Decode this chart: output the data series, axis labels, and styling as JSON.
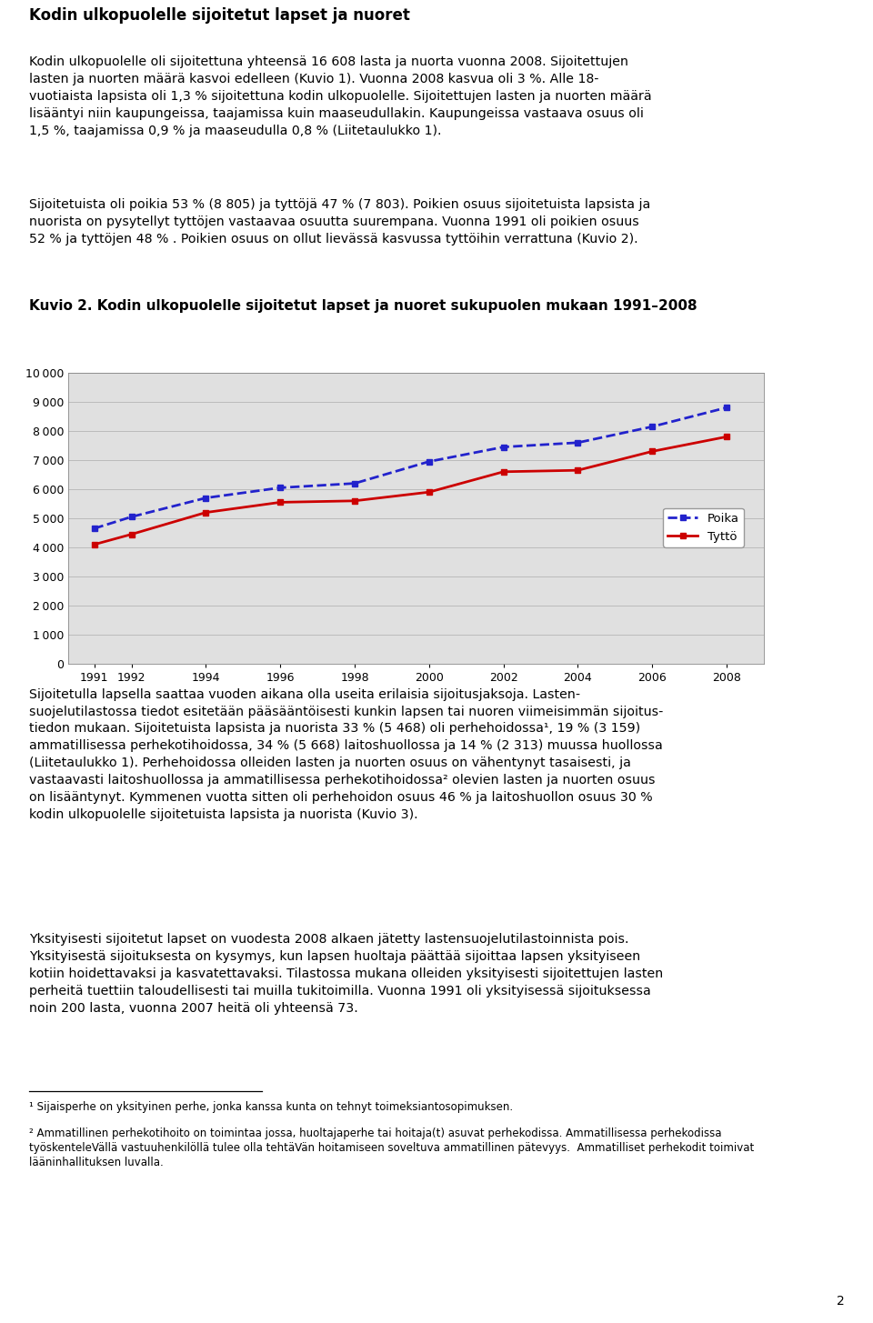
{
  "main_title": "Kodin ulkopuolelle sijoitetut lapset ja nuoret",
  "kuvio_title": "Kuvio 2. Kodin ulkopuolelle sijoitetut lapset ja nuoret sukupuolen mukaan 1991–2008",
  "page_number": "2",
  "years": [
    1991,
    1992,
    1994,
    1996,
    1998,
    2000,
    2002,
    2004,
    2006,
    2008
  ],
  "poika": [
    4650,
    5050,
    5700,
    6050,
    6200,
    6950,
    7450,
    7600,
    8150,
    8805
  ],
  "tytto": [
    4100,
    4450,
    5200,
    5550,
    5600,
    5900,
    6600,
    6650,
    7300,
    7803
  ],
  "ylim": [
    0,
    10000
  ],
  "yticks": [
    0,
    1000,
    2000,
    3000,
    4000,
    5000,
    6000,
    7000,
    8000,
    9000,
    10000
  ],
  "xticks": [
    1991,
    1992,
    1994,
    1996,
    1998,
    2000,
    2002,
    2004,
    2006,
    2008
  ],
  "legend_labels": [
    "Poika",
    "Tyttö"
  ],
  "poika_color": "#2222CC",
  "tytto_color": "#CC0000",
  "chart_bg": "#E0E0E0",
  "grid_color": "#BBBBBB"
}
